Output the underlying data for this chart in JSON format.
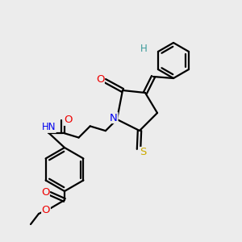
{
  "bg_color": "#ececec",
  "atom_colors": {
    "C": "#000000",
    "H": "#3a9a9a",
    "N": "#0000ee",
    "O": "#ee0000",
    "S": "#ccaa00"
  },
  "bond_color": "#000000",
  "figsize": [
    3.0,
    3.0
  ],
  "dpi": 100,
  "lw": 1.6
}
